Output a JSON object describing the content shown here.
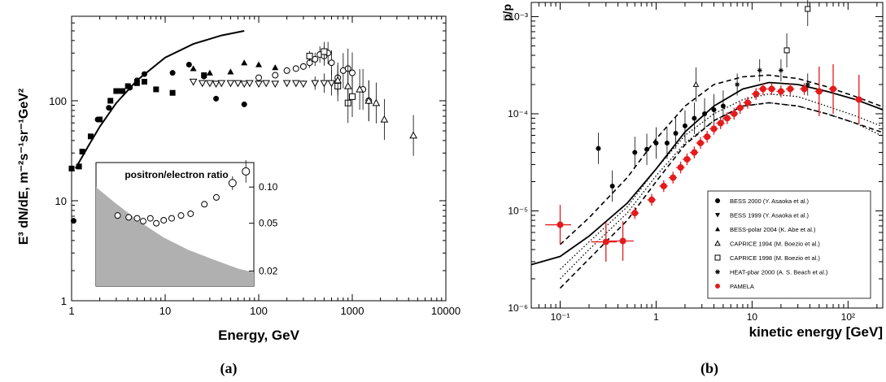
{
  "chart_data": [
    {
      "type": "scatter",
      "panel": "(a)",
      "xlabel": "Energy, GeV",
      "ylabel": "E³ dN/dE, m⁻²s⁻¹sr⁻¹GeV²",
      "x_scale": "log",
      "y_scale": "log",
      "xlim": [
        1,
        10000
      ],
      "ylim": [
        1,
        700
      ],
      "x_ticks": [
        "1",
        "10",
        "100",
        "1000",
        "10000"
      ],
      "y_ticks": [
        "1",
        "10",
        "100"
      ],
      "curve": [
        [
          1.1,
          21
        ],
        [
          1.5,
          35
        ],
        [
          2,
          55
        ],
        [
          3,
          95
        ],
        [
          5,
          160
        ],
        [
          10,
          270
        ],
        [
          20,
          370
        ],
        [
          40,
          450
        ],
        [
          70,
          500
        ]
      ],
      "series": [
        {
          "marker": "filled-circle",
          "points": [
            [
              1.05,
              6.3
            ],
            [
              1.9,
              65
            ],
            [
              2.5,
              85
            ],
            [
              3.2,
              125
            ],
            [
              4.2,
              135
            ],
            [
              5,
              160
            ],
            [
              6,
              185
            ],
            [
              12,
              190
            ],
            [
              18,
              230
            ],
            [
              26,
              175
            ],
            [
              35,
              105
            ],
            [
              70,
              92
            ]
          ]
        },
        {
          "marker": "filled-square",
          "points": [
            [
              1,
              21
            ],
            [
              1.2,
              22
            ],
            [
              1.3,
              31
            ],
            [
              1.6,
              44
            ],
            [
              2,
              65
            ],
            [
              2.6,
              100
            ],
            [
              3,
              125
            ],
            [
              3.5,
              125
            ],
            [
              4,
              140
            ],
            [
              5,
              150
            ],
            [
              6,
              155
            ],
            [
              8,
              130
            ],
            [
              12,
              120
            ],
            [
              26,
              180
            ]
          ]
        },
        {
          "marker": "filled-triangle",
          "points": [
            [
              20,
              210
            ],
            [
              30,
              190
            ],
            [
              50,
              195
            ],
            [
              70,
              240
            ],
            [
              100,
              230
            ],
            [
              150,
              215
            ]
          ]
        },
        {
          "marker": "open-circle",
          "points": [
            [
              100,
              170
            ],
            [
              150,
              180
            ],
            [
              200,
              200
            ],
            [
              250,
              210
            ],
            [
              300,
              220
            ],
            [
              350,
              240
            ],
            [
              400,
              260
            ],
            [
              450,
              290
            ],
            [
              500,
              280
            ],
            [
              550,
              300
            ],
            [
              600,
              240
            ],
            [
              700,
              170
            ],
            [
              800,
              200
            ],
            [
              900,
              210
            ],
            [
              1000,
              190
            ],
            [
              1300,
              130
            ],
            [
              1500,
              100
            ]
          ]
        },
        {
          "marker": "open-triangle-down",
          "points": [
            [
              20,
              155
            ],
            [
              25,
              150
            ],
            [
              30,
              150
            ],
            [
              35,
              148
            ],
            [
              40,
              150
            ],
            [
              50,
              150
            ],
            [
              60,
              150
            ],
            [
              70,
              148
            ],
            [
              80,
              150
            ],
            [
              100,
              148
            ],
            [
              120,
              150
            ],
            [
              150,
              148
            ],
            [
              200,
              150
            ],
            [
              250,
              150
            ],
            [
              300,
              148
            ],
            [
              400,
              150
            ],
            [
              500,
              150
            ],
            [
              600,
              150
            ]
          ]
        },
        {
          "marker": "open-square",
          "points": [
            [
              350,
              280
            ],
            [
              500,
              310
            ],
            [
              700,
              140
            ],
            [
              900,
              95
            ],
            [
              1000,
              110
            ]
          ]
        },
        {
          "marker": "open-triangle",
          "points": [
            [
              700,
              160
            ],
            [
              900,
              140
            ],
            [
              1200,
              130
            ],
            [
              1500,
              100
            ],
            [
              1800,
              95
            ],
            [
              2200,
              65
            ],
            [
              4500,
              45
            ]
          ]
        }
      ],
      "inset": {
        "title": "positron/electron ratio",
        "y_ticks": [
          "0.10",
          "0.05",
          "0.02"
        ],
        "ylim": [
          0.015,
          0.16
        ],
        "points": [
          [
            2.2,
            0.058
          ],
          [
            3,
            0.056
          ],
          [
            3.8,
            0.055
          ],
          [
            4.5,
            0.052
          ],
          [
            5.5,
            0.055
          ],
          [
            6.5,
            0.05
          ],
          [
            8,
            0.053
          ],
          [
            10,
            0.055
          ],
          [
            13,
            0.058
          ],
          [
            17,
            0.06
          ],
          [
            25,
            0.072
          ],
          [
            35,
            0.082
          ],
          [
            55,
            0.108
          ],
          [
            80,
            0.135
          ]
        ]
      }
    },
    {
      "type": "scatter",
      "panel": "(b)",
      "xlabel": "kinetic energy [GeV]",
      "ylabel": "p̅/p",
      "x_scale": "log",
      "y_scale": "log",
      "xlim": [
        0.05,
        230
      ],
      "ylim": [
        1e-06,
        0.0014
      ],
      "x_ticks": [
        "10⁻¹",
        "1",
        "10",
        "10²"
      ],
      "y_ticks": [
        "10⁻³",
        "10⁻⁴",
        "10⁻⁵",
        "10⁻⁶"
      ],
      "legend": [
        {
          "marker": "filled-circle",
          "label": "BESS 2000 (Y. Asaoka et al.)"
        },
        {
          "marker": "filled-triangle-down",
          "label": "BESS 1999 (Y. Asaoka et al.)"
        },
        {
          "marker": "filled-triangle",
          "label": "BESS-polar 2004 (K. Abe et al.)"
        },
        {
          "marker": "open-triangle",
          "label": "CAPRICE 1994 (M. Boezio et al.)"
        },
        {
          "marker": "open-square",
          "label": "CAPRICE 1998 (M. Boezio et al.)"
        },
        {
          "marker": "star",
          "label": "HEAT-pbar 2000 (A. S. Beach et al.)"
        },
        {
          "marker": "red-filled-circle",
          "label": "PAMELA"
        }
      ],
      "solid_curve": [
        [
          0.05,
          2.8e-06
        ],
        [
          0.1,
          3.4e-06
        ],
        [
          0.2,
          5.5e-06
        ],
        [
          0.5,
          1.2e-05
        ],
        [
          1,
          2.7e-05
        ],
        [
          2,
          6.5e-05
        ],
        [
          4,
          0.00012
        ],
        [
          8,
          0.00018
        ],
        [
          15,
          0.00021
        ],
        [
          30,
          0.0002
        ],
        [
          60,
          0.00017
        ],
        [
          120,
          0.00014
        ],
        [
          230,
          0.00011
        ]
      ],
      "dashed_upper": [
        [
          0.1,
          4.5e-06
        ],
        [
          0.2,
          8.5e-06
        ],
        [
          0.5,
          2.2e-05
        ],
        [
          1,
          5.5e-05
        ],
        [
          2,
          0.00012
        ],
        [
          4,
          0.0002
        ],
        [
          8,
          0.00024
        ],
        [
          15,
          0.00025
        ],
        [
          30,
          0.00023
        ],
        [
          60,
          0.00019
        ],
        [
          120,
          0.00015
        ],
        [
          220,
          0.00012
        ]
      ],
      "dashed_lower": [
        [
          0.1,
          1.6e-06
        ],
        [
          0.2,
          3.2e-06
        ],
        [
          0.5,
          8e-06
        ],
        [
          1,
          2e-05
        ],
        [
          2,
          4.8e-05
        ],
        [
          4,
          8.5e-05
        ],
        [
          8,
          0.00012
        ],
        [
          15,
          0.00013
        ],
        [
          30,
          0.00012
        ],
        [
          60,
          0.0001
        ],
        [
          120,
          8e-05
        ],
        [
          220,
          6.5e-05
        ]
      ],
      "dotted_upper": [
        [
          0.1,
          2.5e-06
        ],
        [
          0.2,
          4.8e-06
        ],
        [
          0.5,
          1.1e-05
        ],
        [
          1,
          2.7e-05
        ],
        [
          2,
          6e-05
        ],
        [
          4,
          0.0001
        ],
        [
          8,
          0.00014
        ],
        [
          15,
          0.00016
        ],
        [
          30,
          0.00015
        ],
        [
          60,
          0.00012
        ],
        [
          120,
          9.5e-05
        ],
        [
          220,
          7.5e-05
        ]
      ],
      "dotted_lower": [
        [
          0.1,
          2e-06
        ],
        [
          0.2,
          4e-06
        ],
        [
          0.5,
          9.5e-06
        ],
        [
          1,
          2.3e-05
        ],
        [
          2,
          5e-05
        ],
        [
          4,
          8.5e-05
        ],
        [
          8,
          0.00012
        ],
        [
          15,
          0.00013
        ],
        [
          30,
          0.00012
        ],
        [
          60,
          0.0001
        ],
        [
          120,
          8e-05
        ],
        [
          220,
          6e-05
        ]
      ],
      "pamela": [
        [
          0.1,
          7.2e-06
        ],
        [
          0.3,
          4.8e-06
        ],
        [
          0.45,
          4.9e-06
        ],
        [
          0.6,
          9.5e-06
        ],
        [
          0.9,
          1.3e-05
        ],
        [
          1.2,
          1.8e-05
        ],
        [
          1.5,
          2.2e-05
        ],
        [
          1.8,
          2.8e-05
        ],
        [
          2.1,
          3.4e-05
        ],
        [
          2.5,
          4e-05
        ],
        [
          2.9,
          5e-05
        ],
        [
          3.4,
          5.8e-05
        ],
        [
          4,
          7e-05
        ],
        [
          4.7,
          8e-05
        ],
        [
          5.5,
          9e-05
        ],
        [
          6.5,
          0.0001
        ],
        [
          7.5,
          0.000115
        ],
        [
          9,
          0.00013
        ],
        [
          11,
          0.00016
        ],
        [
          13,
          0.00018
        ],
        [
          16,
          0.00018
        ],
        [
          20,
          0.00017
        ],
        [
          25,
          0.00018
        ],
        [
          35,
          0.00018
        ],
        [
          50,
          0.00017
        ],
        [
          70,
          0.00018
        ],
        [
          130,
          0.00014
        ]
      ],
      "bess": [
        [
          0.25,
          4.4e-05
        ],
        [
          0.35,
          1.8e-05
        ],
        [
          0.6,
          4e-05
        ],
        [
          0.8,
          4.3e-05
        ],
        [
          1,
          5e-05
        ],
        [
          1.3,
          5e-05
        ],
        [
          1.6,
          6.3e-05
        ],
        [
          2,
          7.5e-05
        ],
        [
          2.5,
          9e-05
        ],
        [
          3.2,
          0.0001
        ],
        [
          4,
          0.00011
        ],
        [
          5,
          0.00012
        ]
      ],
      "heat": [
        [
          7,
          0.0002
        ],
        [
          12,
          0.00028
        ],
        [
          20,
          0.00028
        ],
        [
          38,
          0.0002
        ]
      ],
      "caprice": [
        [
          2.6,
          0.0002
        ],
        [
          23,
          0.00045
        ],
        [
          38,
          0.0012
        ]
      ]
    }
  ],
  "captions": {
    "a": "(a)",
    "b": "(b)"
  }
}
